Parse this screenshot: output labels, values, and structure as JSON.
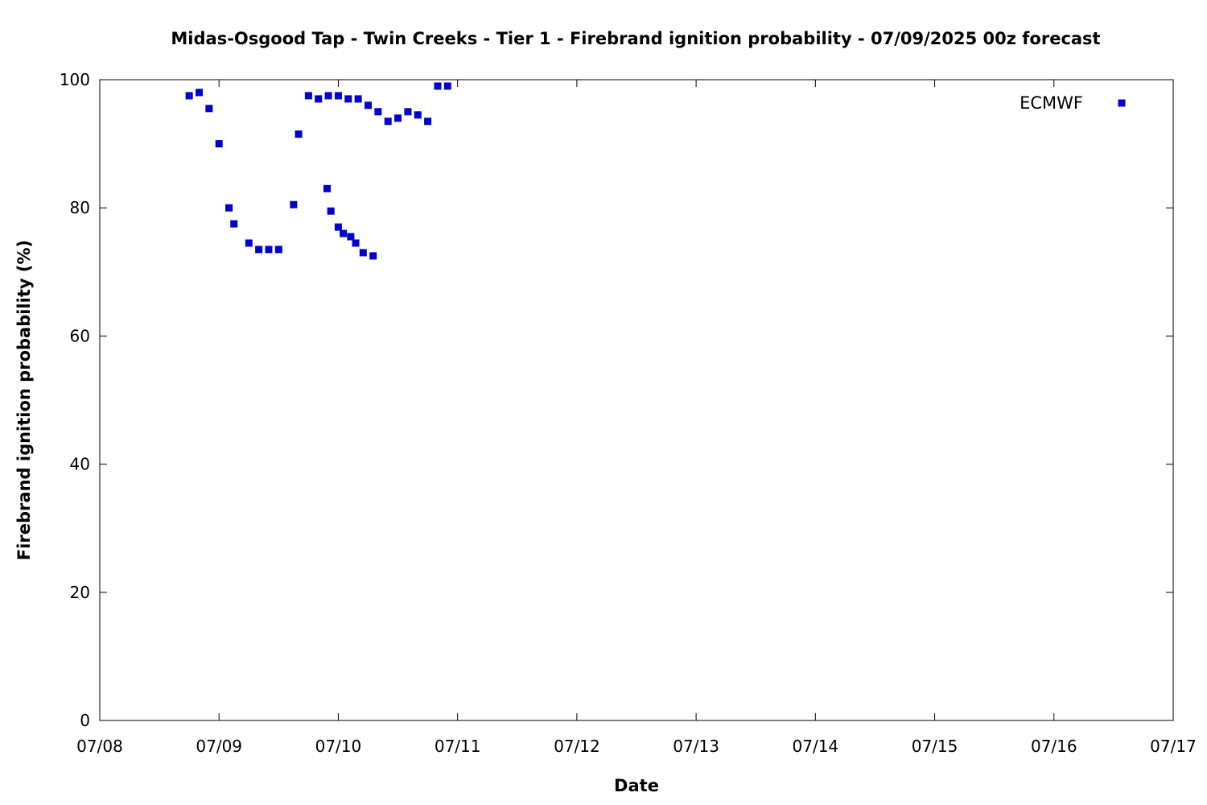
{
  "chart_data": {
    "type": "scatter",
    "title": "Midas-Osgood Tap - Twin Creeks - Tier 1 - Firebrand ignition probability - 07/09/2025 00z forecast",
    "xlabel": "Date",
    "ylabel": "Firebrand ignition probability (%)",
    "x_unit": "days",
    "xlim": [
      "07/08",
      "07/17"
    ],
    "ylim": [
      0,
      100
    ],
    "x_tick_labels": [
      "07/08",
      "07/09",
      "07/10",
      "07/11",
      "07/12",
      "07/13",
      "07/14",
      "07/15",
      "07/16",
      "07/17"
    ],
    "y_ticks": [
      0,
      20,
      40,
      60,
      80,
      100
    ],
    "legend_position": "top-right",
    "grid": false,
    "series": [
      {
        "name": "ECMWF",
        "color": "#0000cc",
        "marker": "square",
        "points": [
          [
            "07/08 18:00",
            97.5
          ],
          [
            "07/08 20:00",
            98.0
          ],
          [
            "07/08 22:00",
            95.5
          ],
          [
            "07/09 00:00",
            90.0
          ],
          [
            "07/09 02:00",
            80.0
          ],
          [
            "07/09 03:00",
            77.5
          ],
          [
            "07/09 06:00",
            74.5
          ],
          [
            "07/09 08:00",
            73.5
          ],
          [
            "07/09 10:00",
            73.5
          ],
          [
            "07/09 12:00",
            73.5
          ],
          [
            "07/09 15:00",
            80.5
          ],
          [
            "07/09 16:00",
            91.5
          ],
          [
            "07/09 18:00",
            97.5
          ],
          [
            "07/09 20:00",
            97.0
          ],
          [
            "07/09 22:00",
            97.5
          ],
          [
            "07/10 00:00",
            97.5
          ],
          [
            "07/10 02:00",
            97.0
          ],
          [
            "07/10 04:00",
            97.0
          ],
          [
            "07/10 06:00",
            96.0
          ],
          [
            "07/10 08:00",
            95.0
          ],
          [
            "07/10 10:00",
            93.5
          ],
          [
            "07/10 12:00",
            94.0
          ],
          [
            "07/10 14:00",
            95.0
          ],
          [
            "07/10 16:00",
            94.5
          ],
          [
            "07/10 18:00",
            93.5
          ],
          [
            "07/10 20:00",
            99.0
          ],
          [
            "07/10 22:00",
            99.0
          ],
          [
            "07/09 21:45",
            83.0
          ],
          [
            "07/09 22:30",
            79.5
          ],
          [
            "07/10 00:00",
            77.0
          ],
          [
            "07/10 01:00",
            76.0
          ],
          [
            "07/10 02:30",
            75.5
          ],
          [
            "07/10 03:30",
            74.5
          ],
          [
            "07/10 05:00",
            73.0
          ],
          [
            "07/10 07:00",
            72.5
          ]
        ]
      }
    ]
  }
}
